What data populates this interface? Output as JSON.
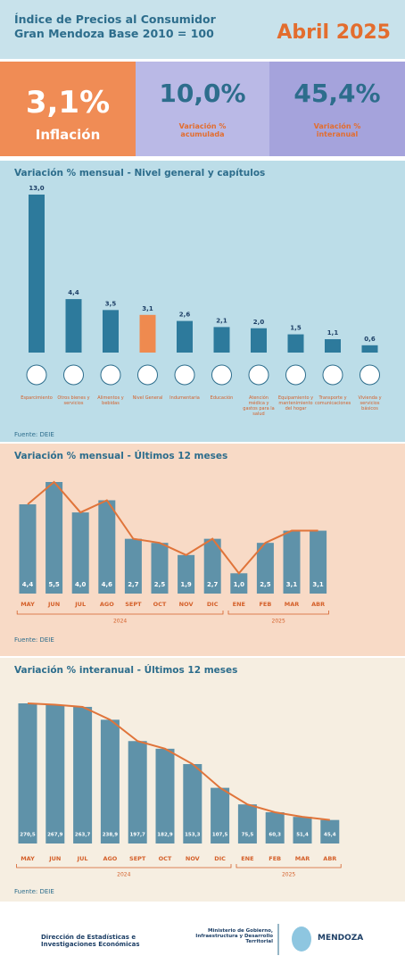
{
  "header": {
    "title_line_1": "Índice de Precios al Consumidor",
    "title_line_2": "Gran Mendoza Base 2010 = 100",
    "period": "Abril 2025"
  },
  "kpis": [
    {
      "value": "3,1%",
      "label": "Inflación"
    },
    {
      "value": "10,0%",
      "label": "Variación % acumulada"
    },
    {
      "value": "45,4%",
      "label": "Variación % interanual"
    }
  ],
  "chart_data": [
    {
      "type": "bar",
      "title": "Variación % mensual - Nivel general y capítulos",
      "categories": [
        "Esparcimiento",
        "Otros bienes y servicios",
        "Alimentos y bebidas",
        "Nivel General",
        "Indumentaria",
        "Educación",
        "Atención médica y gastos para la salud",
        "Equipamiento y mantenimiento del hogar",
        "Transporte y comunicaciones",
        "Vivienda y servicios básicos"
      ],
      "values": [
        13.0,
        4.4,
        3.5,
        3.1,
        2.6,
        2.1,
        2.0,
        1.5,
        1.1,
        0.6
      ],
      "value_labels": [
        "13,0",
        "4,4",
        "3,5",
        "3,1",
        "2,6",
        "2,1",
        "2,0",
        "1,5",
        "1,1",
        "0,6"
      ],
      "colors": [
        "#2d7a9c",
        "#2d7a9c",
        "#2d7a9c",
        "#ef8a4f",
        "#2d7a9c",
        "#2d7a9c",
        "#2d7a9c",
        "#2d7a9c",
        "#2d7a9c",
        "#2d7a9c"
      ],
      "source": "Fuente: DEIE"
    },
    {
      "type": "bar-line",
      "title": "Variación % mensual - Últimos 12 meses",
      "categories": [
        "MAY",
        "JUN",
        "JUL",
        "AGO",
        "SEPT",
        "OCT",
        "NOV",
        "DIC",
        "ENE",
        "FEB",
        "MAR",
        "ABR"
      ],
      "values": [
        4.4,
        5.5,
        4.0,
        4.6,
        2.7,
        2.5,
        1.9,
        2.7,
        1.0,
        2.5,
        3.1,
        3.1
      ],
      "value_labels": [
        "4,4",
        "5,5",
        "4,0",
        "4,6",
        "2,7",
        "2,5",
        "1,9",
        "2,7",
        "1,0",
        "2,5",
        "3,1",
        "3,1"
      ],
      "groups": [
        {
          "label": "2024",
          "count": 8
        },
        {
          "label": "2025",
          "count": 4
        }
      ],
      "color": "#5f92a9",
      "line_color": "#e0743a",
      "source": "Fuente: DEIE"
    },
    {
      "type": "bar-line",
      "title": "Variación % interanual - Últimos 12 meses",
      "categories": [
        "MAY",
        "JUN",
        "JUL",
        "AGO",
        "SEPT",
        "OCT",
        "NOV",
        "DIC",
        "ENE",
        "FEB",
        "MAR",
        "ABR"
      ],
      "values": [
        270.5,
        267.9,
        263.7,
        238.9,
        197.7,
        182.9,
        153.3,
        107.5,
        75.5,
        60.3,
        51.4,
        45.4
      ],
      "value_labels": [
        "270,5",
        "267,9",
        "263,7",
        "238,9",
        "197,7",
        "182,9",
        "153,3",
        "107,5",
        "75,5",
        "60,3",
        "51,4",
        "45,4"
      ],
      "groups": [
        {
          "label": "2024",
          "count": 8
        },
        {
          "label": "2025",
          "count": 4
        }
      ],
      "color": "#5f92a9",
      "line_color": "#e0743a",
      "source": "Fuente: DEIE"
    }
  ],
  "footer": {
    "office": "Dirección de Estadísticas e Investigaciones Económicas",
    "ministry": "Ministerio de Gobierno, Infraestructura y Desarrollo Territorial",
    "province": "MENDOZA"
  }
}
